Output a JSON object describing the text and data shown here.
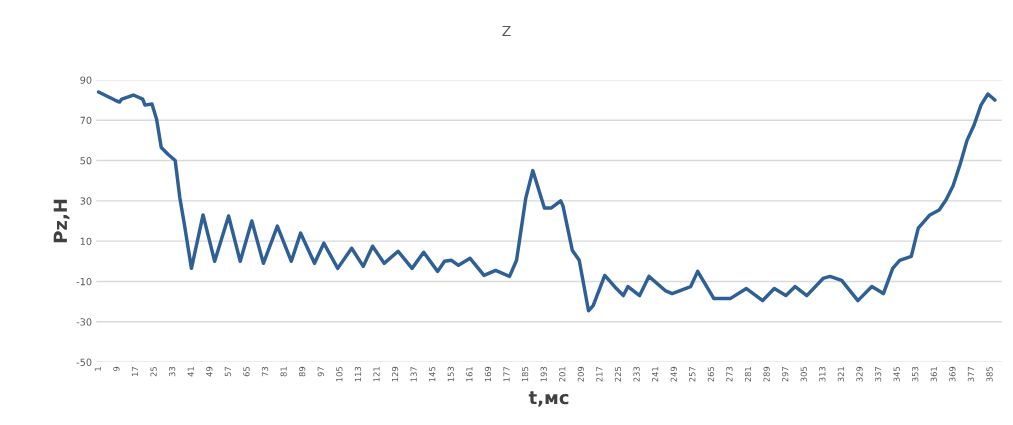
{
  "chart_data": {
    "type": "line",
    "title": "Z",
    "xlabel": "t,мс",
    "ylabel": "Pz,H",
    "x": [
      1,
      8,
      10,
      11,
      16,
      20,
      21,
      24,
      26,
      28,
      31,
      34,
      36,
      38,
      41,
      46,
      51,
      57,
      62,
      67,
      72,
      78,
      84,
      88,
      94,
      98,
      104,
      110,
      115,
      119,
      124,
      130,
      136,
      141,
      147,
      150,
      153,
      156,
      161,
      167,
      172,
      178,
      181,
      185,
      188,
      193,
      196,
      200,
      201,
      205,
      208,
      212,
      214,
      219,
      224,
      227,
      229,
      234,
      238,
      245,
      248,
      256,
      259,
      266,
      273,
      280,
      287,
      292,
      297,
      301,
      306,
      313,
      316,
      321,
      328,
      334,
      339,
      343,
      346,
      351,
      354,
      359,
      363,
      366,
      369,
      372,
      375,
      378,
      381,
      384,
      387
    ],
    "series": [
      {
        "color": "#2e6096",
        "values": [
          84,
          80,
          79,
          80.5,
          82.5,
          80.5,
          77.5,
          78,
          70.5,
          56.5,
          53,
          50,
          31.5,
          18,
          -3.5,
          23,
          0,
          22.5,
          0,
          20,
          -1,
          17.5,
          0,
          14,
          -1,
          9,
          -3.5,
          6.5,
          -2.5,
          7.5,
          -1,
          5,
          -3.5,
          4.5,
          -5,
          0,
          0.5,
          -2,
          1.5,
          -7,
          -4.5,
          -7.5,
          0.5,
          31.5,
          45,
          26.5,
          26.5,
          30,
          27.5,
          5.5,
          0.5,
          -24.5,
          -22,
          -7,
          -13.5,
          -17,
          -12.5,
          -17,
          -7.5,
          -14.5,
          -16,
          -12.5,
          -5,
          -18.5,
          -18.5,
          -13.5,
          -19.5,
          -13.5,
          -17,
          -12.5,
          -17,
          -8.5,
          -7.5,
          -9.5,
          -19.5,
          -12.5,
          -16,
          -3.5,
          0.5,
          2.5,
          16.5,
          23,
          25.5,
          30.5,
          37.5,
          48,
          60,
          67.5,
          77.5,
          83,
          80
        ]
      }
    ],
    "xlim": [
      0,
      390
    ],
    "xticks": [
      1,
      9,
      17,
      25,
      33,
      41,
      49,
      57,
      65,
      73,
      81,
      89,
      97,
      105,
      113,
      121,
      129,
      137,
      145,
      153,
      161,
      169,
      177,
      185,
      193,
      201,
      209,
      217,
      225,
      233,
      241,
      249,
      257,
      265,
      273,
      281,
      289,
      297,
      305,
      313,
      321,
      329,
      337,
      345,
      353,
      361,
      369,
      377,
      385
    ],
    "ylim": [
      -50,
      90
    ],
    "yticks": [
      90,
      70,
      50,
      30,
      10,
      -10,
      -30,
      -50
    ],
    "grid": "y",
    "marker": "none",
    "line_style": "solid"
  }
}
